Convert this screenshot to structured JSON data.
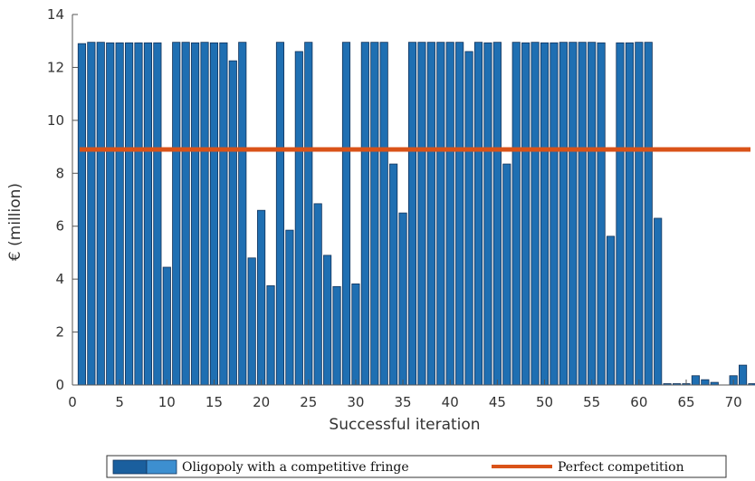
{
  "chart_data": {
    "type": "bar",
    "xlabel": "Successful iteration",
    "ylabel": "€ (million)",
    "xlim": [
      0,
      72
    ],
    "ylim": [
      0,
      14
    ],
    "xticks": [
      0,
      5,
      10,
      15,
      20,
      25,
      30,
      35,
      40,
      45,
      50,
      55,
      60,
      65,
      70
    ],
    "yticks": [
      0,
      2,
      4,
      6,
      8,
      10,
      12,
      14
    ],
    "grid": false,
    "legend_placement": "bottom",
    "series": [
      {
        "name": "Oligopoly with a competitive fringe",
        "type": "bar",
        "color": "#1f6fb2",
        "x": [
          1,
          2,
          3,
          4,
          5,
          6,
          7,
          8,
          9,
          10,
          11,
          12,
          13,
          14,
          15,
          16,
          17,
          18,
          19,
          20,
          21,
          22,
          23,
          24,
          25,
          26,
          27,
          28,
          29,
          30,
          31,
          32,
          33,
          34,
          35,
          36,
          37,
          38,
          39,
          40,
          41,
          42,
          43,
          44,
          45,
          46,
          47,
          48,
          49,
          50,
          51,
          52,
          53,
          54,
          55,
          56,
          57,
          58,
          59,
          60,
          61,
          62,
          63,
          64,
          65,
          66,
          67,
          68,
          69,
          70,
          71,
          72
        ],
        "values": [
          12.9,
          12.95,
          12.95,
          12.93,
          12.93,
          12.93,
          12.93,
          12.93,
          12.93,
          4.45,
          12.95,
          12.95,
          12.93,
          12.95,
          12.93,
          12.93,
          12.25,
          12.95,
          4.8,
          6.6,
          3.75,
          12.95,
          5.85,
          12.6,
          12.95,
          6.85,
          4.9,
          3.72,
          12.95,
          3.82,
          12.95,
          12.95,
          12.95,
          8.35,
          6.5,
          12.95,
          12.95,
          12.95,
          12.95,
          12.95,
          12.95,
          12.6,
          12.95,
          12.93,
          12.95,
          8.35,
          12.95,
          12.93,
          12.95,
          12.93,
          12.93,
          12.95,
          12.95,
          12.95,
          12.95,
          12.93,
          5.62,
          12.93,
          12.93,
          12.95,
          12.95,
          6.3,
          0.05,
          0.05,
          0.05,
          0.35,
          0.2,
          0.1,
          0.0,
          0.35,
          0.75,
          0.05
        ]
      },
      {
        "name": "Perfect competition",
        "type": "line",
        "color": "#d95319",
        "value": 8.9
      }
    ]
  }
}
